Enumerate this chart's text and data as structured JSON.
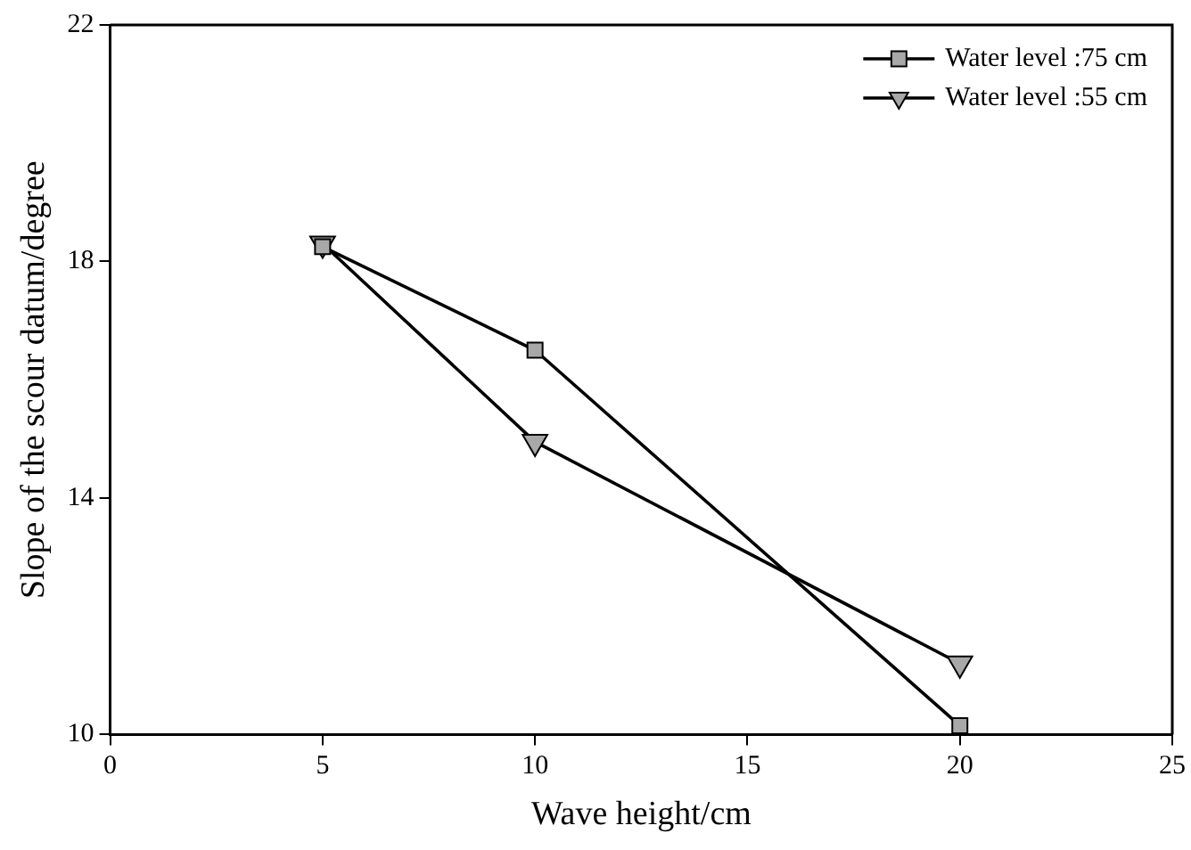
{
  "chart_data": {
    "type": "line",
    "xlabel": "Wave height/cm",
    "ylabel": "Slope of the scour datum/degree",
    "x": [
      5,
      10,
      20
    ],
    "series": [
      {
        "name": "Water level :75 cm",
        "color": "#000000",
        "values": [
          18.25,
          16.5,
          10.15
        ],
        "marker": "square"
      },
      {
        "name": "Water level :55 cm",
        "color": "#000000",
        "values": [
          18.3,
          14.95,
          11.2
        ],
        "marker": "triangle"
      }
    ],
    "xlim": [
      0,
      25
    ],
    "xticks": [
      0,
      5,
      10,
      15,
      20,
      25
    ],
    "ylim": [
      10,
      22
    ],
    "yticks": [
      10,
      14,
      18,
      22
    ],
    "grid": false,
    "legend": "top right",
    "line_style": "solid"
  }
}
